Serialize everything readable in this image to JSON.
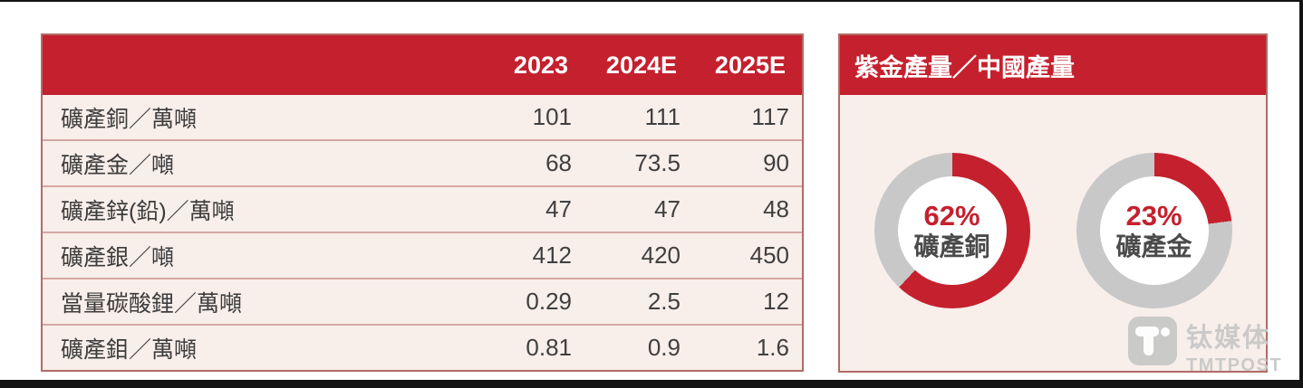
{
  "colors": {
    "accent_red": "#c5202e",
    "ring_gray": "#c8c8c8",
    "panel_bg": "#f8eeea",
    "panel_border": "#b26b66",
    "row_divider": "#d6a8a4",
    "text_dark": "#3c3c3c",
    "frame_black": "#141414",
    "watermark_gray": "#c7c7c7"
  },
  "chart_data": [
    {
      "type": "table",
      "title": "",
      "columns": [
        "2023",
        "2024E",
        "2025E"
      ],
      "rows": [
        {
          "label": "礦產銅／萬噸",
          "values": [
            "101",
            "111",
            "117"
          ]
        },
        {
          "label": "礦產金／噸",
          "values": [
            "68",
            "73.5",
            "90"
          ]
        },
        {
          "label": "礦產鋅(鉛)／萬噸",
          "values": [
            "47",
            "47",
            "48"
          ]
        },
        {
          "label": "礦產銀／噸",
          "values": [
            "412",
            "420",
            "450"
          ]
        },
        {
          "label": "當量碳酸鋰／萬噸",
          "values": [
            "0.29",
            "2.5",
            "12"
          ]
        },
        {
          "label": "礦產鉬／萬噸",
          "values": [
            "0.81",
            "0.9",
            "1.6"
          ]
        }
      ]
    },
    {
      "type": "pie",
      "title": "紫金產量／中國產量",
      "legend_position": "center",
      "series": [
        {
          "name": "礦產銅",
          "value": 62,
          "display": "62%"
        },
        {
          "name": "礦產金",
          "value": 23,
          "display": "23%"
        }
      ],
      "note": "donut charts: red = Zijin share of China output, gray = remainder, arcs start at 12 o'clock clockwise"
    }
  ],
  "watermark": {
    "cn": "钛媒体",
    "en": "TMTPOST"
  }
}
